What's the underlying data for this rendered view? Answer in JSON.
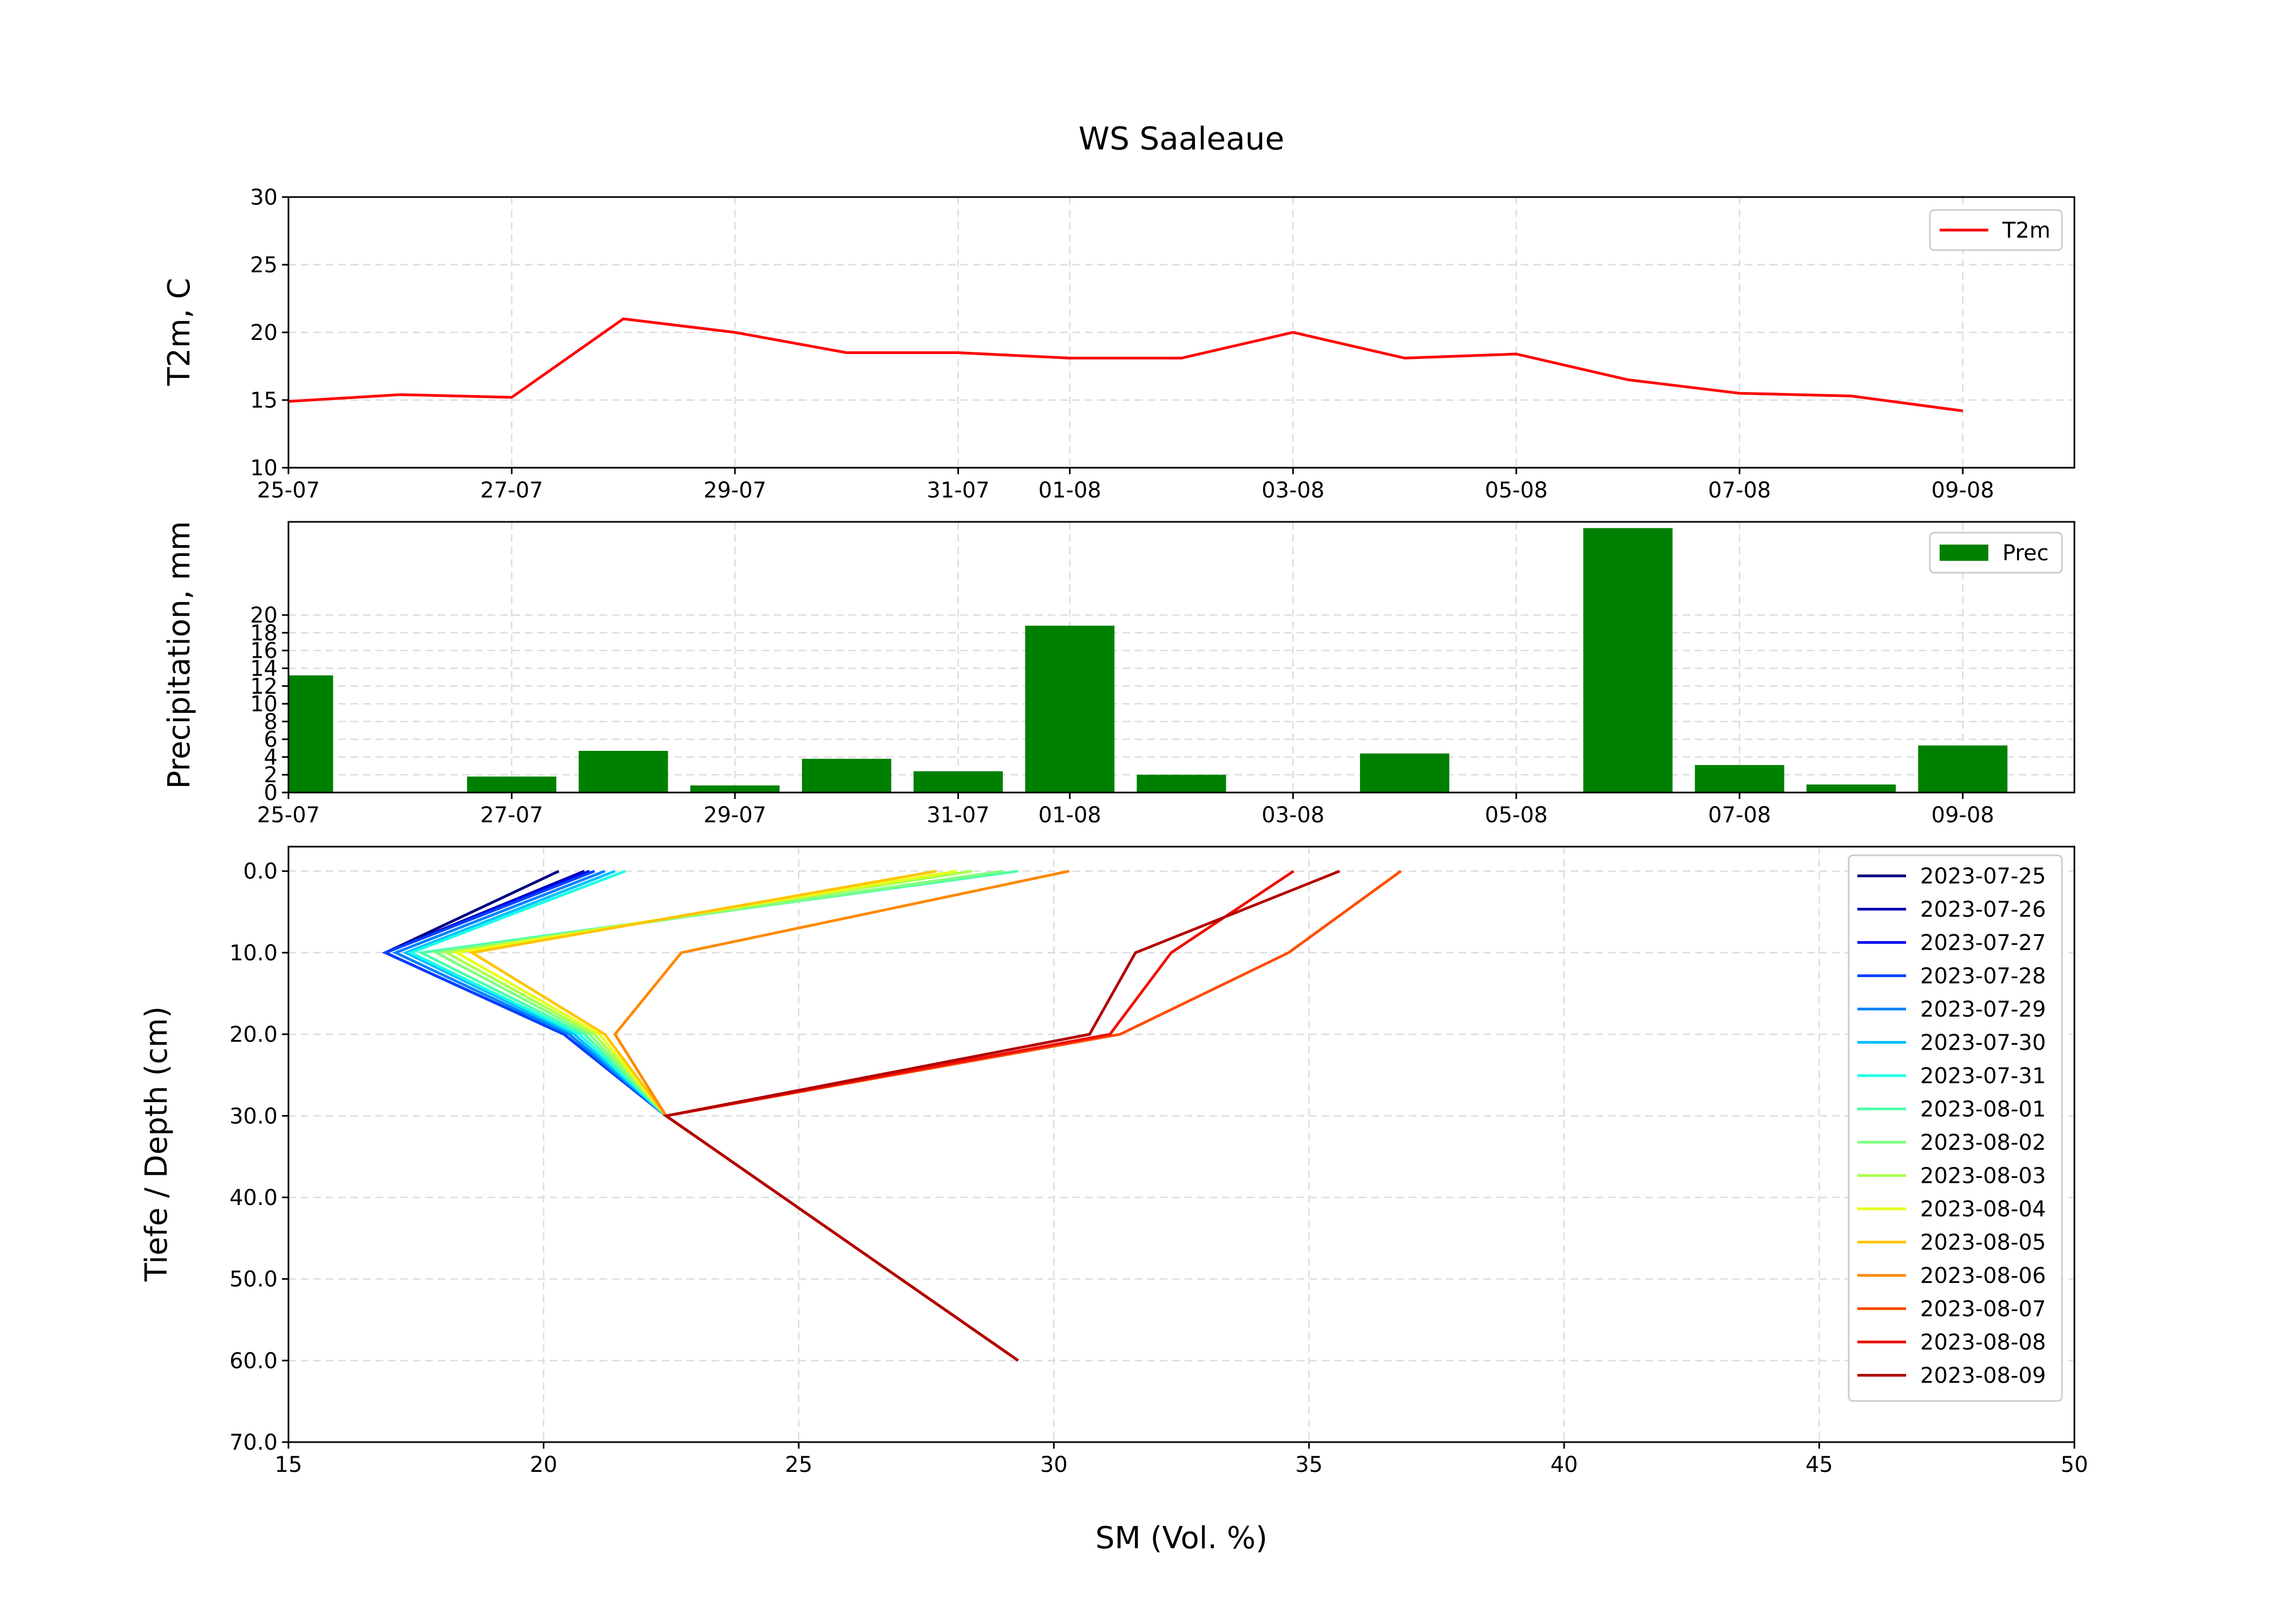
{
  "chart_data": [
    {
      "type": "line",
      "title": "WS Saaleaue",
      "ylabel": "T2m, C",
      "xlabel": "",
      "x": [
        "2023-07-25",
        "2023-07-26",
        "2023-07-27",
        "2023-07-28",
        "2023-07-29",
        "2023-07-30",
        "2023-07-31",
        "2023-08-01",
        "2023-08-02",
        "2023-08-03",
        "2023-08-04",
        "2023-08-05",
        "2023-08-06",
        "2023-08-07",
        "2023-08-08",
        "2023-08-09"
      ],
      "series": [
        {
          "name": "T2m",
          "color": "#ff0000",
          "values": [
            14.9,
            15.4,
            15.2,
            21.0,
            20.0,
            18.5,
            18.5,
            18.1,
            18.1,
            20.0,
            18.1,
            18.4,
            16.5,
            15.5,
            15.3,
            14.2
          ]
        }
      ],
      "ylim": [
        10,
        30
      ],
      "yticks": [
        10,
        15,
        20,
        25,
        30
      ],
      "xticks": [
        "25-07",
        "27-07",
        "29-07",
        "31-07",
        "01-08",
        "03-08",
        "05-08",
        "07-08",
        "09-08"
      ],
      "grid": true,
      "legend": "top-right"
    },
    {
      "type": "bar",
      "ylabel": "Precipitation, mm",
      "xlabel": "",
      "x": [
        "2023-07-25",
        "2023-07-26",
        "2023-07-27",
        "2023-07-28",
        "2023-07-29",
        "2023-07-30",
        "2023-07-31",
        "2023-08-01",
        "2023-08-02",
        "2023-08-03",
        "2023-08-04",
        "2023-08-05",
        "2023-08-06",
        "2023-08-07",
        "2023-08-08",
        "2023-08-09"
      ],
      "series": [
        {
          "name": "Prec",
          "color": "#008000",
          "values": [
            13.2,
            0,
            1.8,
            4.7,
            0.8,
            3.8,
            2.4,
            18.8,
            2.0,
            0,
            4.4,
            0,
            29.8,
            3.1,
            0.9,
            5.3
          ]
        }
      ],
      "ylim": [
        0,
        30.5
      ],
      "yticks": [
        0,
        2,
        4,
        6,
        8,
        10,
        12,
        14,
        16,
        18,
        20
      ],
      "xticks": [
        "25-07",
        "27-07",
        "29-07",
        "31-07",
        "01-08",
        "03-08",
        "05-08",
        "07-08",
        "09-08"
      ],
      "grid": true,
      "legend": "top-right"
    },
    {
      "type": "line",
      "xlabel": "SM (Vol. %)",
      "ylabel": "Tiefe / Depth (cm)",
      "depths": [
        0,
        10,
        20,
        30,
        60
      ],
      "xlim": [
        15,
        50
      ],
      "ylim": [
        70,
        -3
      ],
      "xticks": [
        15,
        20,
        25,
        30,
        35,
        40,
        45,
        50
      ],
      "yticks": [
        "0.0",
        "10.0",
        "20.0",
        "30.0",
        "40.0",
        "50.0",
        "60.0",
        "70.0"
      ],
      "grid": true,
      "legend": "top-right",
      "series": [
        {
          "name": "2023-07-25",
          "color": "#00007f",
          "values": [
            20.3,
            16.9,
            20.4,
            22.4,
            29.3
          ]
        },
        {
          "name": "2023-07-26",
          "color": "#0000b2",
          "values": [
            20.8,
            16.9,
            20.4,
            22.4,
            29.3
          ]
        },
        {
          "name": "2023-07-27",
          "color": "#0000f0",
          "values": [
            20.9,
            16.9,
            20.4,
            22.4,
            29.3
          ]
        },
        {
          "name": "2023-07-28",
          "color": "#0040ff",
          "values": [
            21.0,
            16.9,
            20.4,
            22.4,
            29.3
          ]
        },
        {
          "name": "2023-07-29",
          "color": "#0080ff",
          "values": [
            21.2,
            17.1,
            20.5,
            22.4,
            29.3
          ]
        },
        {
          "name": "2023-07-30",
          "color": "#00c0ff",
          "values": [
            21.4,
            17.3,
            20.6,
            22.4,
            29.3
          ]
        },
        {
          "name": "2023-07-31",
          "color": "#1affe6",
          "values": [
            21.6,
            17.4,
            20.7,
            22.4,
            29.3
          ]
        },
        {
          "name": "2023-08-01",
          "color": "#4dffaa",
          "values": [
            29.3,
            17.6,
            20.8,
            22.4,
            29.3
          ]
        },
        {
          "name": "2023-08-02",
          "color": "#80ff80",
          "values": [
            29.0,
            17.9,
            20.9,
            22.4,
            29.3
          ]
        },
        {
          "name": "2023-08-03",
          "color": "#aaff4d",
          "values": [
            28.4,
            18.1,
            21.0,
            22.4,
            29.3
          ]
        },
        {
          "name": "2023-08-04",
          "color": "#e6ff1a",
          "values": [
            28.1,
            18.3,
            21.1,
            22.4,
            29.3
          ]
        },
        {
          "name": "2023-08-05",
          "color": "#ffc400",
          "values": [
            27.7,
            18.6,
            21.2,
            22.4,
            29.3
          ]
        },
        {
          "name": "2023-08-06",
          "color": "#ff8900",
          "values": [
            30.3,
            22.7,
            21.4,
            22.4,
            29.3
          ]
        },
        {
          "name": "2023-08-07",
          "color": "#ff4e00",
          "values": [
            36.8,
            34.6,
            31.3,
            22.4,
            29.3
          ]
        },
        {
          "name": "2023-08-08",
          "color": "#f00f00",
          "values": [
            34.7,
            32.3,
            31.1,
            22.4,
            29.3
          ]
        },
        {
          "name": "2023-08-09",
          "color": "#b20000",
          "values": [
            35.6,
            31.6,
            30.7,
            22.4,
            29.3
          ]
        }
      ]
    }
  ]
}
